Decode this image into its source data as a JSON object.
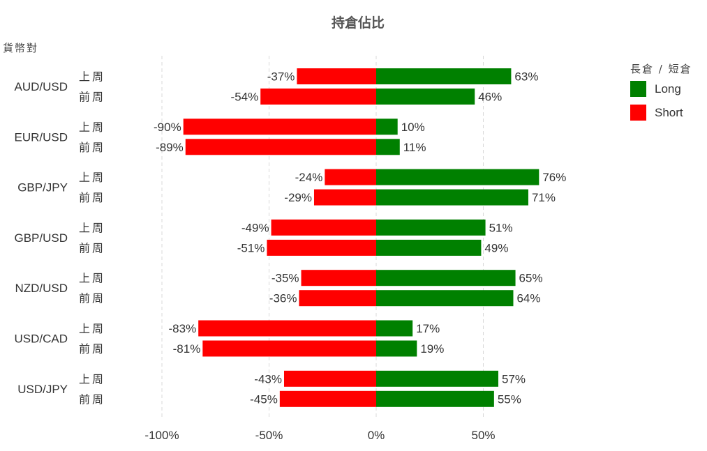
{
  "chart_data": {
    "type": "bar",
    "orientation": "horizontal",
    "stacked": "diverging",
    "title": "持倉佔比",
    "ylabel": "貨幣對",
    "legend_title": "長倉 / 短倉",
    "legend_position": "top-right",
    "xlim": [
      -100,
      65
    ],
    "xticks": [
      -100,
      -50,
      0,
      50
    ],
    "xtick_labels": [
      "-100%",
      "-50%",
      "0%",
      "50%"
    ],
    "grid": "vertical dashed",
    "periods": [
      "上周",
      "前周"
    ],
    "categories": [
      "AUD/USD",
      "EUR/USD",
      "GBP/JPY",
      "GBP/USD",
      "NZD/USD",
      "USD/CAD",
      "USD/JPY"
    ],
    "series": [
      {
        "name": "Long",
        "color": "#008000",
        "values": [
          [
            63,
            46
          ],
          [
            10,
            11
          ],
          [
            76,
            71
          ],
          [
            51,
            49
          ],
          [
            65,
            64
          ],
          [
            17,
            19
          ],
          [
            57,
            55
          ]
        ],
        "labels": [
          [
            "63%",
            "46%"
          ],
          [
            "10%",
            "11%"
          ],
          [
            "76%",
            "71%"
          ],
          [
            "51%",
            "49%"
          ],
          [
            "65%",
            "64%"
          ],
          [
            "17%",
            "19%"
          ],
          [
            "57%",
            "55%"
          ]
        ]
      },
      {
        "name": "Short",
        "color": "#ff0000",
        "values": [
          [
            -37,
            -54
          ],
          [
            -90,
            -89
          ],
          [
            -24,
            -29
          ],
          [
            -49,
            -51
          ],
          [
            -35,
            -36
          ],
          [
            -83,
            -81
          ],
          [
            -43,
            -45
          ]
        ],
        "labels": [
          [
            "-37%",
            "-54%"
          ],
          [
            "-90%",
            "-89%"
          ],
          [
            "-24%",
            "-29%"
          ],
          [
            "-49%",
            "-51%"
          ],
          [
            "-35%",
            "-36%"
          ],
          [
            "-83%",
            "-81%"
          ],
          [
            "-43%",
            "-45%"
          ]
        ]
      }
    ]
  }
}
